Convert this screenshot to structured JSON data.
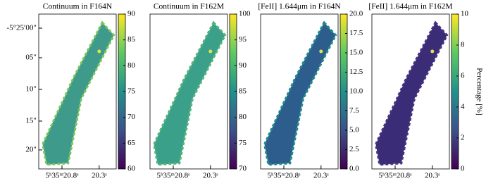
{
  "chart_data": [
    {
      "type": "image",
      "title": "Continuum in F164N",
      "colormap": "viridis",
      "y_tick_labels": [
        "-5°25′00″",
        "05″",
        "10″",
        "15″",
        "20″"
      ],
      "x_tick_labels": [
        "5ʰ35ᵐ20.8ˢ",
        "20.3ˢ"
      ],
      "clim": [
        60,
        90
      ],
      "cticks": [
        60,
        65,
        70,
        75,
        80,
        85,
        90
      ]
    },
    {
      "type": "image",
      "title": "Continuum in F162M",
      "colormap": "viridis",
      "x_tick_labels": [
        "5ʰ35ᵐ20.8ˢ",
        "20.3ˢ"
      ],
      "clim": [
        70,
        100
      ],
      "cticks": [
        70,
        75,
        80,
        85,
        90,
        95,
        100
      ]
    },
    {
      "type": "image",
      "title": "[FeII] 1.644μm in F164N",
      "colormap": "viridis",
      "x_tick_labels": [
        "5ʰ35ᵐ20.8ˢ",
        "20.3ˢ"
      ],
      "clim": [
        0,
        20
      ],
      "cticks": [
        {
          "value": 0,
          "label": "0.0"
        },
        {
          "value": 2.5,
          "label": "2.5"
        },
        {
          "value": 5,
          "label": "5.0"
        },
        {
          "value": 7.5,
          "label": "7.5"
        },
        {
          "value": 10,
          "label": "10.0"
        },
        {
          "value": 12.5,
          "label": "12.5"
        },
        {
          "value": 15,
          "label": "15.0"
        },
        {
          "value": 17.5,
          "label": "17.5"
        },
        {
          "value": 20,
          "label": "20.0"
        }
      ]
    },
    {
      "type": "image",
      "title": "[FeII] 1.644μm in F162M",
      "colormap": "viridis",
      "x_tick_labels": [
        "5ʰ35ᵐ20.8ˢ",
        "20.3ˢ"
      ],
      "clim": [
        0,
        10
      ],
      "cticks": [
        0,
        2,
        4,
        6,
        8,
        10
      ],
      "colorbar_label": "Percentage [%]"
    }
  ]
}
